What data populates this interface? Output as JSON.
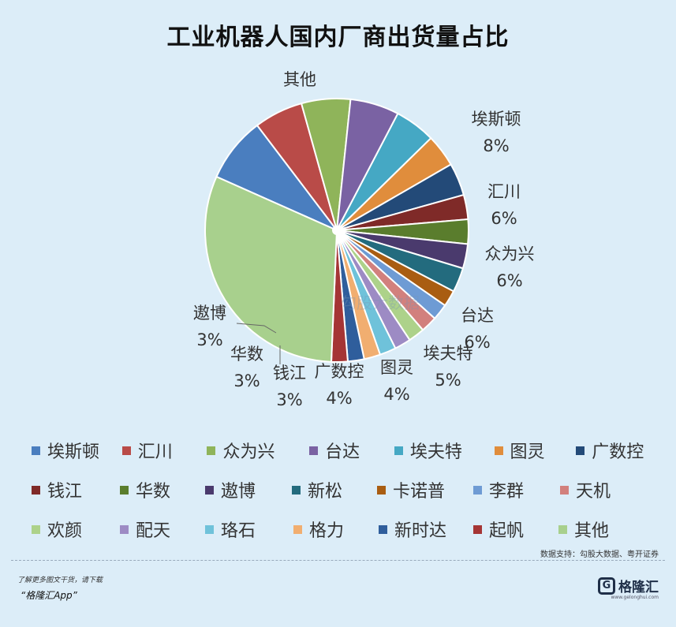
{
  "title": "工业机器人国内厂商出货量占比",
  "chart_data": {
    "type": "pie",
    "title": "工业机器人国内厂商出货量占比",
    "slices": [
      {
        "name": "埃斯顿",
        "value": 8,
        "label": "8%",
        "color": "#4a7ebf"
      },
      {
        "name": "汇川",
        "value": 6,
        "label": "6%",
        "color": "#b94b48"
      },
      {
        "name": "众为兴",
        "value": 6,
        "label": "6%",
        "color": "#8fb45a"
      },
      {
        "name": "台达",
        "value": 6,
        "label": "6%",
        "color": "#7a62a3"
      },
      {
        "name": "埃夫特",
        "value": 5,
        "label": "5%",
        "color": "#45a8c4"
      },
      {
        "name": "图灵",
        "value": 4,
        "label": "4%",
        "color": "#e08d3c"
      },
      {
        "name": "广数控",
        "value": 4,
        "label": "4%",
        "color": "#234a78"
      },
      {
        "name": "钱江",
        "value": 3,
        "label": "3%",
        "color": "#7f2a28"
      },
      {
        "name": "华数",
        "value": 3,
        "label": "3%",
        "color": "#5a7d2d"
      },
      {
        "name": "遨博",
        "value": 3,
        "label": "3%",
        "color": "#4a3a6d"
      },
      {
        "name": "新松",
        "value": 3,
        "label": "",
        "color": "#236b7e"
      },
      {
        "name": "卡诺普",
        "value": 2,
        "label": "",
        "color": "#a95d12"
      },
      {
        "name": "李群",
        "value": 2,
        "label": "",
        "color": "#6e9bd4"
      },
      {
        "name": "天机",
        "value": 2,
        "label": "",
        "color": "#d2807d"
      },
      {
        "name": "欢颜",
        "value": 2,
        "label": "",
        "color": "#add28a"
      },
      {
        "name": "配天",
        "value": 2,
        "label": "",
        "color": "#9d8bc4"
      },
      {
        "name": "珞石",
        "value": 2,
        "label": "",
        "color": "#6fc2da"
      },
      {
        "name": "格力",
        "value": 2,
        "label": "",
        "color": "#f1ae70"
      },
      {
        "name": "新时达",
        "value": 2,
        "label": "",
        "color": "#2f5e9c"
      },
      {
        "name": "起帆",
        "value": 2,
        "label": "",
        "color": "#a53535"
      },
      {
        "name": "其他",
        "value": 31,
        "label": "",
        "color": "#a8d08d"
      }
    ],
    "legend": "bottom"
  },
  "footer": {
    "source": "数据支持：勾股大数据、粤开证券",
    "promo_line": "了解更多图文干货，请下载",
    "promo_app": "“格隆汇App”",
    "brand_name": "格隆汇",
    "brand_url": "www.gelonghui.com",
    "watermark": "勾股大数据"
  }
}
